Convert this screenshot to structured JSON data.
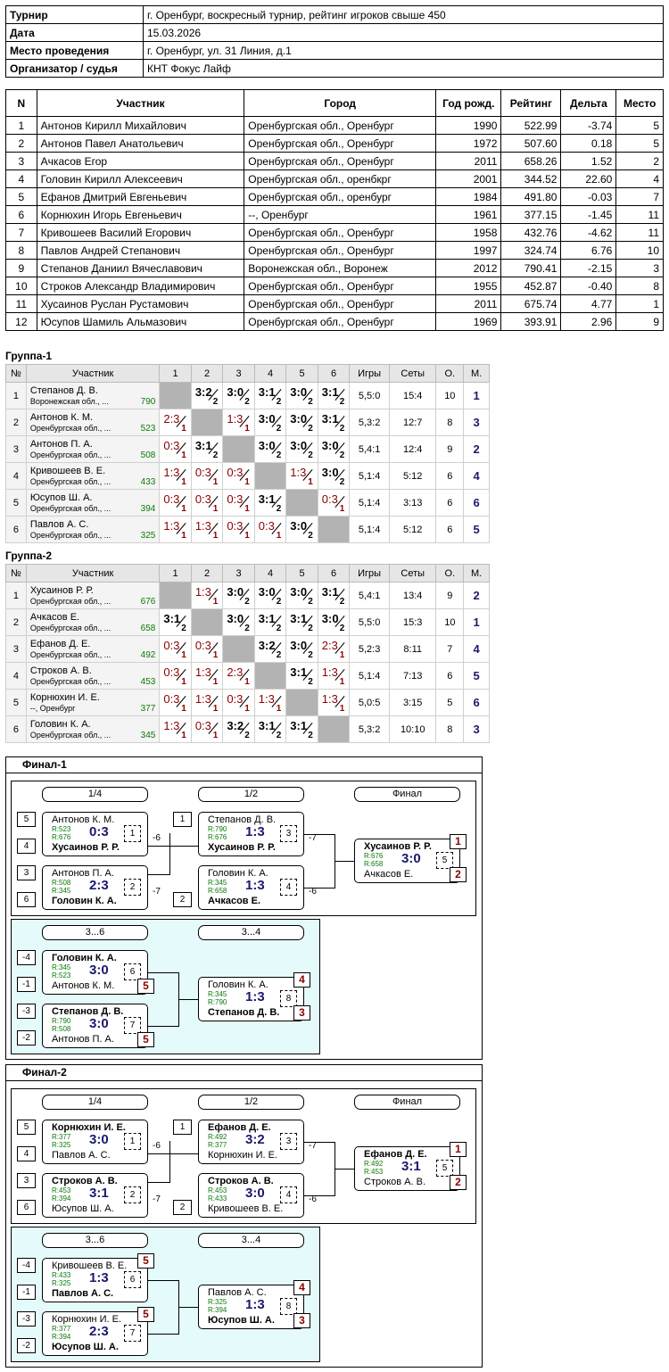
{
  "info": [
    {
      "key": "Турнир",
      "value": "г. Оренбург, воскресный турнир, рейтинг игроков свыше 450"
    },
    {
      "key": "Дата",
      "value": "15.03.2026"
    },
    {
      "key": "Место проведения",
      "value": "г. Оренбург, ул. 31 Линия, д.1"
    },
    {
      "key": "Организатор / судья",
      "value": "КНТ Фокус Лайф"
    }
  ],
  "players": {
    "headers": [
      "N",
      "Участник",
      "Город",
      "Год рожд.",
      "Рейтинг",
      "Дельта",
      "Место"
    ],
    "rows": [
      [
        "1",
        "Антонов Кирилл Михайлович",
        "Оренбургская обл., Оренбург",
        "1990",
        "522.99",
        "-3.74",
        "5"
      ],
      [
        "2",
        "Антонов Павел Анатольевич",
        "Оренбургская обл., Оренбург",
        "1972",
        "507.60",
        "0.18",
        "5"
      ],
      [
        "3",
        "Ачкасов Егор",
        "Оренбургская обл., Оренбург",
        "2011",
        "658.26",
        "1.52",
        "2"
      ],
      [
        "4",
        "Головин Кирилл Алексеевич",
        "Оренбургская обл., оренбкрг",
        "2001",
        "344.52",
        "22.60",
        "4"
      ],
      [
        "5",
        "Ефанов Дмитрий Евгеньевич",
        "Оренбургская обл., оренбург",
        "1984",
        "491.80",
        "-0.03",
        "7"
      ],
      [
        "6",
        "Корнюхин Игорь Евгеньевич",
        "--, Оренбург",
        "1961",
        "377.15",
        "-1.45",
        "11"
      ],
      [
        "7",
        "Кривошеев Василий Егорович",
        "Оренбургская обл., Оренбург",
        "1958",
        "432.76",
        "-4.62",
        "11"
      ],
      [
        "8",
        "Павлов Андрей Степанович",
        "Оренбургская обл., Оренбург",
        "1997",
        "324.74",
        "6.76",
        "10"
      ],
      [
        "9",
        "Степанов Даниил Вячеславович",
        "Воронежская обл., Воронеж",
        "2012",
        "790.41",
        "-2.15",
        "3"
      ],
      [
        "10",
        "Строков Александр Владимирович",
        "Оренбургская обл., Оренбург",
        "1955",
        "452.87",
        "-0.40",
        "8"
      ],
      [
        "11",
        "Хусаинов Руслан Рустамович",
        "Оренбургская обл., Оренбург",
        "2011",
        "675.74",
        "4.77",
        "1"
      ],
      [
        "12",
        "Юсупов Шамиль Альмазович",
        "Оренбургская обл., Оренбург",
        "1969",
        "393.91",
        "2.96",
        "9"
      ]
    ]
  },
  "group_headers": [
    "№",
    "Участник",
    "1",
    "2",
    "3",
    "4",
    "5",
    "6",
    "Игры",
    "Сеты",
    "О.",
    "М."
  ],
  "groups": [
    {
      "title": "Группа-1",
      "rows": [
        {
          "n": "1",
          "name": "Степанов Д. В.",
          "city": "Воронежская обл., ...",
          "rating": "790",
          "cells": [
            "x",
            "3:2|2|w",
            "3:0|2|w",
            "3:1|2|w",
            "3:0|2|w",
            "3:1|2|w"
          ],
          "games": "5,5:0",
          "sets": "15:4",
          "pts": "10",
          "place": "1"
        },
        {
          "n": "2",
          "name": "Антонов К. М.",
          "city": "Оренбургская обл., ...",
          "rating": "523",
          "cells": [
            "2:3|1|l",
            "x",
            "1:3|1|l",
            "3:0|2|w",
            "3:0|2|w",
            "3:1|2|w"
          ],
          "games": "5,3:2",
          "sets": "12:7",
          "pts": "8",
          "place": "3"
        },
        {
          "n": "3",
          "name": "Антонов П. А.",
          "city": "Оренбургская обл., ...",
          "rating": "508",
          "cells": [
            "0:3|1|l",
            "3:1|2|w",
            "x",
            "3:0|2|w",
            "3:0|2|w",
            "3:0|2|w"
          ],
          "games": "5,4:1",
          "sets": "12:4",
          "pts": "9",
          "place": "2"
        },
        {
          "n": "4",
          "name": "Кривошеев В. Е.",
          "city": "Оренбургская обл., ...",
          "rating": "433",
          "cells": [
            "1:3|1|l",
            "0:3|1|l",
            "0:3|1|l",
            "x",
            "1:3|1|l",
            "3:0|2|w"
          ],
          "games": "5,1:4",
          "sets": "5:12",
          "pts": "6",
          "place": "4"
        },
        {
          "n": "5",
          "name": "Юсупов Ш. А.",
          "city": "Оренбургская обл., ...",
          "rating": "394",
          "cells": [
            "0:3|1|l",
            "0:3|1|l",
            "0:3|1|l",
            "3:1|2|w",
            "x",
            "0:3|1|l"
          ],
          "games": "5,1:4",
          "sets": "3:13",
          "pts": "6",
          "place": "6"
        },
        {
          "n": "6",
          "name": "Павлов А. С.",
          "city": "Оренбургская обл., ...",
          "rating": "325",
          "cells": [
            "1:3|1|l",
            "1:3|1|l",
            "0:3|1|l",
            "0:3|1|l",
            "3:0|2|w",
            "x"
          ],
          "games": "5,1:4",
          "sets": "5:12",
          "pts": "6",
          "place": "5"
        }
      ]
    },
    {
      "title": "Группа-2",
      "rows": [
        {
          "n": "1",
          "name": "Хусаинов Р. Р.",
          "city": "Оренбургская обл., ...",
          "rating": "676",
          "cells": [
            "x",
            "1:3|1|l",
            "3:0|2|w",
            "3:0|2|w",
            "3:0|2|w",
            "3:1|2|w"
          ],
          "games": "5,4:1",
          "sets": "13:4",
          "pts": "9",
          "place": "2"
        },
        {
          "n": "2",
          "name": "Ачкасов Е.",
          "city": "Оренбургская обл., ...",
          "rating": "658",
          "cells": [
            "3:1|2|w",
            "x",
            "3:0|2|w",
            "3:1|2|w",
            "3:1|2|w",
            "3:0|2|w"
          ],
          "games": "5,5:0",
          "sets": "15:3",
          "pts": "10",
          "place": "1"
        },
        {
          "n": "3",
          "name": "Ефанов Д. Е.",
          "city": "Оренбургская обл., ...",
          "rating": "492",
          "cells": [
            "0:3|1|l",
            "0:3|1|l",
            "x",
            "3:2|2|w",
            "3:0|2|w",
            "2:3|1|l"
          ],
          "games": "5,2:3",
          "sets": "8:11",
          "pts": "7",
          "place": "4"
        },
        {
          "n": "4",
          "name": "Строков А. В.",
          "city": "Оренбургская обл., ...",
          "rating": "453",
          "cells": [
            "0:3|1|l",
            "1:3|1|l",
            "2:3|1|l",
            "x",
            "3:1|2|w",
            "1:3|1|l"
          ],
          "games": "5,1:4",
          "sets": "7:13",
          "pts": "6",
          "place": "5"
        },
        {
          "n": "5",
          "name": "Корнюхин И. Е.",
          "city": "--, Оренбург",
          "rating": "377",
          "cells": [
            "0:3|1|l",
            "1:3|1|l",
            "0:3|1|l",
            "1:3|1|l",
            "x",
            "1:3|1|l"
          ],
          "games": "5,0:5",
          "sets": "3:15",
          "pts": "5",
          "place": "6"
        },
        {
          "n": "6",
          "name": "Головин К. А.",
          "city": "Оренбургская обл., ...",
          "rating": "345",
          "cells": [
            "1:3|1|l",
            "0:3|1|l",
            "3:2|2|w",
            "3:1|2|w",
            "3:1|2|w",
            "x"
          ],
          "games": "5,3:2",
          "sets": "10:10",
          "pts": "8",
          "place": "3"
        }
      ]
    }
  ],
  "finals": [
    {
      "title": "Финал-1",
      "round_labels": [
        "1/4",
        "1/2",
        "Финал"
      ],
      "consol_labels": [
        "3...6",
        "3...4"
      ],
      "matches": [
        {
          "s1": "5",
          "s2": "4",
          "p1": "Антонов К. М.",
          "r1": "R:523",
          "p2": "Хусаинов Р. Р.",
          "r2": "R:676",
          "score": "0:3",
          "num": "1",
          "win": 2,
          "loss_tag": "-6"
        },
        {
          "s1": "3",
          "s2": "6",
          "p1": "Антонов П. А.",
          "r1": "R:508",
          "p2": "Головин К. А.",
          "r2": "R:345",
          "score": "2:3",
          "num": "2",
          "win": 2,
          "loss_tag": "-7"
        },
        {
          "s1": "1",
          "p1": "Степанов Д. В.",
          "r1": "R:790",
          "p2": "Хусаинов Р. Р.",
          "r2": "R:676",
          "score": "1:3",
          "num": "3",
          "win": 2,
          "loss_tag": "-7"
        },
        {
          "s2": "2",
          "p1": "Головин К. А.",
          "r1": "R:345",
          "p2": "Ачкасов Е.",
          "r2": "R:658",
          "score": "1:3",
          "num": "4",
          "win": 2,
          "loss_tag": "-6"
        },
        {
          "p1": "Хусаинов Р. Р.",
          "r1": "R:676",
          "p2": "Ачкасов Е.",
          "r2": "R:658",
          "score": "3:0",
          "num": "5",
          "win": 1,
          "pl1": "1",
          "pl2": "2"
        },
        {
          "s1": "-4",
          "s2": "-1",
          "p1": "Головин К. А.",
          "r1": "R:345",
          "p2": "Антонов К. М.",
          "r2": "R:523",
          "score": "3:0",
          "num": "6",
          "win": 1,
          "pl2": "5"
        },
        {
          "s1": "-3",
          "s2": "-2",
          "p1": "Степанов Д. В.",
          "r1": "R:790",
          "p2": "Антонов П. А.",
          "r2": "R:508",
          "score": "3:0",
          "num": "7",
          "win": 1,
          "pl2": "5"
        },
        {
          "p1": "Головин К. А.",
          "r1": "R:345",
          "p2": "Степанов Д. В.",
          "r2": "R:790",
          "score": "1:3",
          "num": "8",
          "win": 2,
          "pl1": "4",
          "pl2": "3"
        }
      ]
    },
    {
      "title": "Финал-2",
      "round_labels": [
        "1/4",
        "1/2",
        "Финал"
      ],
      "consol_labels": [
        "3...6",
        "3...4"
      ],
      "matches": [
        {
          "s1": "5",
          "s2": "4",
          "p1": "Корнюхин И. Е.",
          "r1": "R:377",
          "p2": "Павлов А. С.",
          "r2": "R:325",
          "score": "3:0",
          "num": "1",
          "win": 1,
          "loss_tag": "-6"
        },
        {
          "s1": "3",
          "s2": "6",
          "p1": "Строков А. В.",
          "r1": "R:453",
          "p2": "Юсупов Ш. А.",
          "r2": "R:394",
          "score": "3:1",
          "num": "2",
          "win": 1,
          "loss_tag": "-7"
        },
        {
          "s1": "1",
          "p1": "Ефанов Д. Е.",
          "r1": "R:492",
          "p2": "Корнюхин И. Е.",
          "r2": "R:377",
          "score": "3:2",
          "num": "3",
          "win": 1,
          "loss_tag": "-7"
        },
        {
          "s2": "2",
          "p1": "Строков А. В.",
          "r1": "R:453",
          "p2": "Кривошеев В. Е.",
          "r2": "R:433",
          "score": "3:0",
          "num": "4",
          "win": 1,
          "loss_tag": "-6"
        },
        {
          "p1": "Ефанов Д. Е.",
          "r1": "R:492",
          "p2": "Строков А. В.",
          "r2": "R:453",
          "score": "3:1",
          "num": "5",
          "win": 1,
          "pl1": "1",
          "pl2": "2"
        },
        {
          "s1": "-4",
          "s2": "-1",
          "p1": "Кривошеев В. Е.",
          "r1": "R:433",
          "p2": "Павлов А. С.",
          "r2": "R:325",
          "score": "1:3",
          "num": "6",
          "win": 2,
          "pl1": "5"
        },
        {
          "s1": "-3",
          "s2": "-2",
          "p1": "Корнюхин И. Е.",
          "r1": "R:377",
          "p2": "Юсупов Ш. А.",
          "r2": "R:394",
          "score": "2:3",
          "num": "7",
          "win": 2,
          "pl1": "5"
        },
        {
          "p1": "Павлов А. С.",
          "r1": "R:325",
          "p2": "Юсупов Ш. А.",
          "r2": "R:394",
          "score": "1:3",
          "num": "8",
          "win": 2,
          "pl1": "4",
          "pl2": "3"
        }
      ]
    }
  ]
}
